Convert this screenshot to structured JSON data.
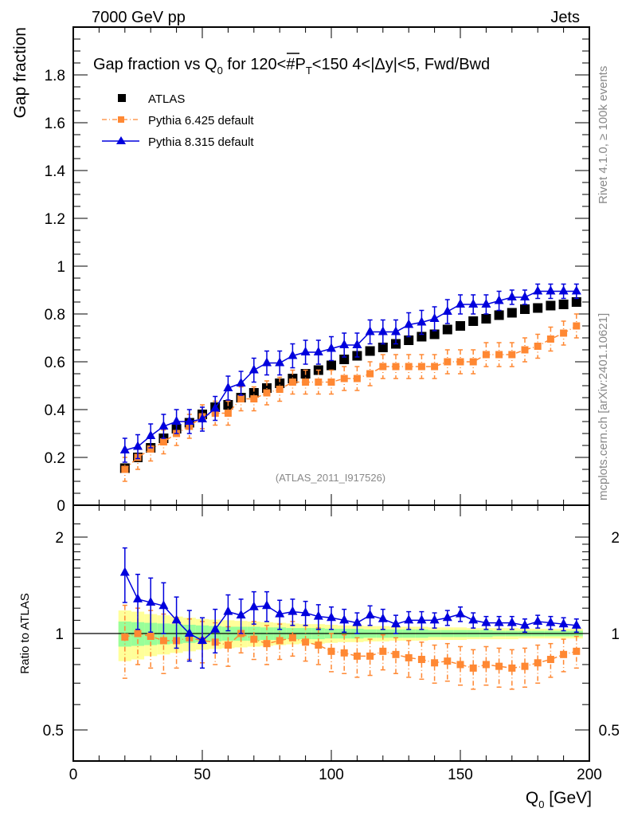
{
  "header": {
    "left": "7000 GeV pp",
    "right": "Jets"
  },
  "side_labels": {
    "rivet": "Rivet 4.1.0, ≥ 100k events",
    "mcplots": "mcplots.cern.ch [arXiv:2401.10621]"
  },
  "chart_data": [
    {
      "type": "scatter",
      "title": "Gap fraction vs Q0 for 120<#P_T<150  4<|Δy|<5, Fwd/Bwd",
      "title_parts": {
        "a": "Gap fraction vs Q",
        "sub": "0",
        "b": " for 120<#",
        "pbar": "P",
        "tsub": "T",
        "c": "<150  4<|Δy|<5, Fwd/Bwd"
      },
      "ylabel": "Gap fraction",
      "xlabel": "",
      "xlim": [
        0,
        200
      ],
      "ylim": [
        0,
        2.0
      ],
      "yticks": [
        "0",
        "0.2",
        "0.4",
        "0.6",
        "0.8",
        "1",
        "1.2",
        "1.4",
        "1.6",
        "1.8"
      ],
      "annotation": "(ATLAS_2011_I917526)",
      "legend_position": "top-left",
      "x": [
        20,
        25,
        30,
        35,
        40,
        45,
        50,
        55,
        60,
        65,
        70,
        75,
        80,
        85,
        90,
        95,
        100,
        105,
        110,
        115,
        120,
        125,
        130,
        135,
        140,
        145,
        150,
        155,
        160,
        165,
        170,
        175,
        180,
        185,
        190,
        195
      ],
      "series": [
        {
          "name": "ATLAS",
          "marker": "square",
          "color": "#000000",
          "values": [
            0.155,
            0.2,
            0.24,
            0.28,
            0.32,
            0.345,
            0.38,
            0.41,
            0.42,
            0.45,
            0.47,
            0.49,
            0.51,
            0.53,
            0.55,
            0.565,
            0.585,
            0.61,
            0.625,
            0.645,
            0.66,
            0.675,
            0.69,
            0.705,
            0.715,
            0.735,
            0.75,
            0.77,
            0.78,
            0.795,
            0.805,
            0.82,
            0.825,
            0.835,
            0.84,
            0.85
          ],
          "errors": [
            0.01,
            0.01,
            0.01,
            0.01,
            0.01,
            0.01,
            0.01,
            0.01,
            0.01,
            0.01,
            0.01,
            0.01,
            0.01,
            0.01,
            0.01,
            0.01,
            0.01,
            0.01,
            0.01,
            0.01,
            0.01,
            0.01,
            0.01,
            0.01,
            0.01,
            0.01,
            0.01,
            0.01,
            0.01,
            0.01,
            0.01,
            0.01,
            0.01,
            0.01,
            0.01,
            0.01
          ]
        },
        {
          "name": "Pythia 6.425 default",
          "marker": "square",
          "line": "dash-dot",
          "color": "#ff8833",
          "values": [
            0.15,
            0.2,
            0.235,
            0.265,
            0.3,
            0.33,
            0.37,
            0.385,
            0.385,
            0.445,
            0.445,
            0.47,
            0.485,
            0.515,
            0.515,
            0.515,
            0.515,
            0.53,
            0.53,
            0.55,
            0.58,
            0.58,
            0.58,
            0.58,
            0.58,
            0.6,
            0.6,
            0.6,
            0.63,
            0.63,
            0.63,
            0.65,
            0.665,
            0.695,
            0.72,
            0.75
          ],
          "errors": [
            0.05,
            0.05,
            0.05,
            0.05,
            0.05,
            0.05,
            0.05,
            0.05,
            0.05,
            0.05,
            0.05,
            0.05,
            0.05,
            0.05,
            0.05,
            0.05,
            0.05,
            0.05,
            0.05,
            0.05,
            0.05,
            0.05,
            0.05,
            0.05,
            0.05,
            0.05,
            0.05,
            0.05,
            0.05,
            0.05,
            0.05,
            0.05,
            0.05,
            0.05,
            0.05,
            0.05
          ]
        },
        {
          "name": "Pythia 8.315 default",
          "marker": "triangle",
          "line": "solid",
          "color": "#0000dd",
          "values": [
            0.23,
            0.245,
            0.29,
            0.33,
            0.35,
            0.35,
            0.36,
            0.405,
            0.49,
            0.51,
            0.565,
            0.595,
            0.595,
            0.625,
            0.64,
            0.64,
            0.655,
            0.67,
            0.67,
            0.725,
            0.725,
            0.725,
            0.755,
            0.765,
            0.78,
            0.81,
            0.84,
            0.84,
            0.84,
            0.855,
            0.87,
            0.87,
            0.895,
            0.895,
            0.895,
            0.895
          ],
          "errors": [
            0.05,
            0.05,
            0.05,
            0.05,
            0.05,
            0.05,
            0.05,
            0.05,
            0.05,
            0.05,
            0.05,
            0.05,
            0.05,
            0.05,
            0.05,
            0.05,
            0.05,
            0.05,
            0.05,
            0.05,
            0.05,
            0.05,
            0.05,
            0.05,
            0.05,
            0.05,
            0.04,
            0.04,
            0.04,
            0.04,
            0.03,
            0.03,
            0.03,
            0.03,
            0.03,
            0.03
          ]
        }
      ]
    },
    {
      "type": "scatter",
      "ylabel": "Ratio to ATLAS",
      "xlabel": "Q0 [GeV]",
      "xlabel_parts": {
        "q": "Q",
        "sub": "0",
        "rest": " [GeV]"
      },
      "xlim": [
        0,
        200
      ],
      "ylim": [
        0.35,
        2.3
      ],
      "yscale": "log",
      "yticks": [
        "0.5",
        "1",
        "2"
      ],
      "xticks": [
        "0",
        "50",
        "100",
        "150",
        "200"
      ],
      "reference_line": 1,
      "x": [
        20,
        25,
        30,
        35,
        40,
        45,
        50,
        55,
        60,
        65,
        70,
        75,
        80,
        85,
        90,
        95,
        100,
        105,
        110,
        115,
        120,
        125,
        130,
        135,
        140,
        145,
        150,
        155,
        160,
        165,
        170,
        175,
        180,
        185,
        190,
        195
      ],
      "bands": {
        "green_halfwidth": [
          0.09,
          0.085,
          0.08,
          0.075,
          0.07,
          0.065,
          0.06,
          0.055,
          0.05,
          0.05,
          0.05,
          0.045,
          0.045,
          0.04,
          0.04,
          0.04,
          0.035,
          0.035,
          0.035,
          0.03,
          0.03,
          0.03,
          0.03,
          0.03,
          0.025,
          0.025,
          0.025,
          0.025,
          0.025,
          0.02,
          0.02,
          0.02,
          0.02,
          0.02,
          0.02,
          0.02
        ],
        "yellow_halfwidth": [
          0.18,
          0.17,
          0.15,
          0.14,
          0.13,
          0.12,
          0.11,
          0.105,
          0.1,
          0.095,
          0.09,
          0.085,
          0.08,
          0.075,
          0.07,
          0.07,
          0.065,
          0.06,
          0.06,
          0.055,
          0.055,
          0.05,
          0.05,
          0.05,
          0.045,
          0.045,
          0.045,
          0.04,
          0.04,
          0.04,
          0.04,
          0.035,
          0.035,
          0.035,
          0.035,
          0.035
        ],
        "green_color": "#99ff99",
        "yellow_color": "#ffff99"
      },
      "series": [
        {
          "name": "Pythia 6.425 default",
          "color": "#ff8833",
          "values": [
            0.975,
            1.0,
            0.98,
            0.95,
            0.95,
            0.97,
            0.95,
            0.94,
            0.92,
            1.0,
            0.96,
            0.93,
            0.95,
            0.97,
            0.94,
            0.92,
            0.88,
            0.87,
            0.85,
            0.85,
            0.88,
            0.86,
            0.84,
            0.83,
            0.81,
            0.82,
            0.8,
            0.78,
            0.8,
            0.79,
            0.78,
            0.79,
            0.81,
            0.83,
            0.86,
            0.88
          ],
          "errors": [
            0.25,
            0.2,
            0.2,
            0.2,
            0.17,
            0.14,
            0.14,
            0.14,
            0.13,
            0.13,
            0.13,
            0.13,
            0.12,
            0.12,
            0.12,
            0.12,
            0.12,
            0.12,
            0.12,
            0.11,
            0.11,
            0.11,
            0.11,
            0.11,
            0.11,
            0.11,
            0.11,
            0.11,
            0.11,
            0.11,
            0.11,
            0.11,
            0.11,
            0.1,
            0.1,
            0.1
          ]
        },
        {
          "name": "Pythia 8.315 default",
          "color": "#0000dd",
          "values": [
            1.55,
            1.28,
            1.25,
            1.22,
            1.1,
            1.0,
            0.95,
            1.03,
            1.17,
            1.14,
            1.21,
            1.22,
            1.15,
            1.17,
            1.16,
            1.13,
            1.12,
            1.1,
            1.08,
            1.14,
            1.11,
            1.07,
            1.1,
            1.1,
            1.1,
            1.12,
            1.15,
            1.1,
            1.08,
            1.08,
            1.08,
            1.06,
            1.09,
            1.08,
            1.07,
            1.06
          ],
          "errors": [
            0.3,
            0.25,
            0.24,
            0.22,
            0.2,
            0.18,
            0.17,
            0.16,
            0.15,
            0.14,
            0.14,
            0.13,
            0.12,
            0.11,
            0.1,
            0.1,
            0.09,
            0.09,
            0.08,
            0.08,
            0.08,
            0.07,
            0.07,
            0.07,
            0.06,
            0.06,
            0.06,
            0.06,
            0.05,
            0.05,
            0.05,
            0.05,
            0.05,
            0.05,
            0.05,
            0.05
          ]
        }
      ]
    }
  ]
}
